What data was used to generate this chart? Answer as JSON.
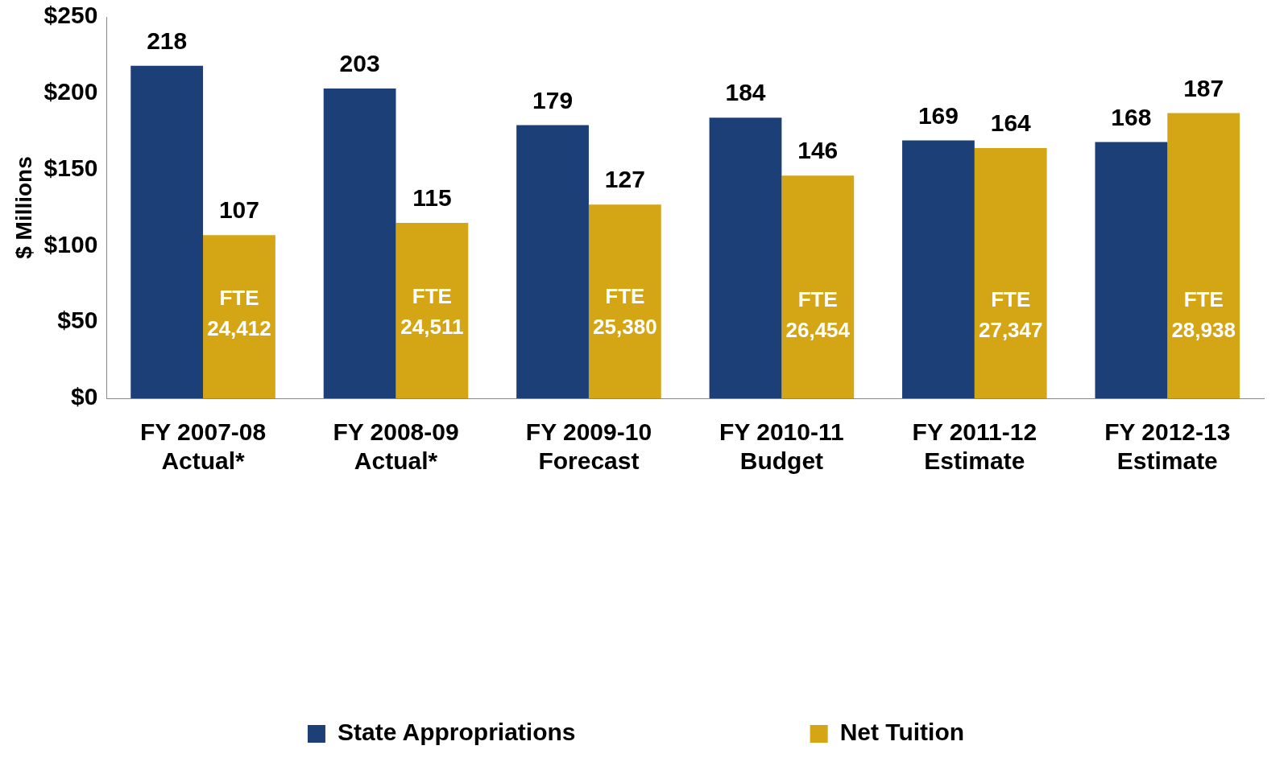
{
  "chart_data": {
    "type": "bar",
    "ylabel": "$ Millions",
    "categories": [
      "FY 2007-08 Actual*",
      "FY 2008-09 Actual*",
      "FY 2009-10 Forecast",
      "FY 2010-11 Budget",
      "FY 2011-12 Estimate",
      "FY 2012-13 Estimate"
    ],
    "series": [
      {
        "name": "State Appropriations",
        "color": "#1c3f78",
        "values": [
          218,
          203,
          179,
          184,
          169,
          168
        ]
      },
      {
        "name": "Net Tuition",
        "color": "#d4a514",
        "values": [
          107,
          115,
          127,
          146,
          164,
          187
        ]
      }
    ],
    "ylim": [
      0,
      250
    ],
    "yticks": [
      {
        "value": 0,
        "label": "$0"
      },
      {
        "value": 50,
        "label": "$50"
      },
      {
        "value": 100,
        "label": "$100"
      },
      {
        "value": 150,
        "label": "$150"
      },
      {
        "value": 200,
        "label": "$200"
      },
      {
        "value": 250,
        "label": "$250"
      }
    ],
    "data_labels": true,
    "grid": false,
    "legend": "bottom",
    "annotations": [
      {
        "text": "FTE 24,412",
        "x": "FY 2007-08 Actual*",
        "y": 55
      },
      {
        "text": "FTE 24,511",
        "x": "FY 2008-09 Actual*",
        "y": 56
      },
      {
        "text": "FTE 25,380",
        "x": "FY 2009-10 Forecast",
        "y": 56
      },
      {
        "text": "FTE 26,454",
        "x": "FY 2010-11 Budget",
        "y": 54
      },
      {
        "text": "FTE 27,347",
        "x": "FY 2011-12 Estimate",
        "y": 54
      },
      {
        "text": "FTE 28,938",
        "x": "FY 2012-13 Estimate",
        "y": 54
      }
    ]
  }
}
